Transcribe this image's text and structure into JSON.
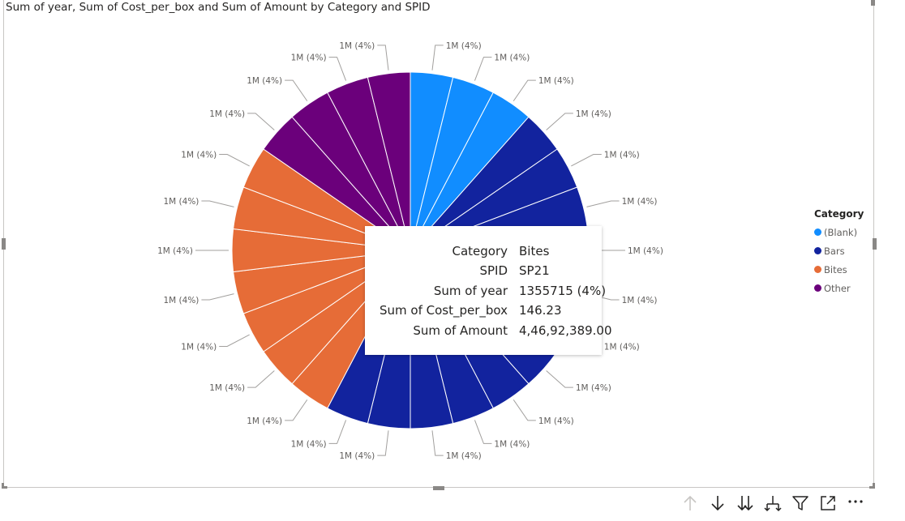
{
  "chart_data": {
    "type": "pie",
    "title": "Sum of year, Sum of Cost_per_box and Sum of Amount by Category and SPID",
    "legend": {
      "title": "Category",
      "placement": "right",
      "items": [
        {
          "name": "(Blank)",
          "color": "#118dff"
        },
        {
          "name": "Bars",
          "color": "#12239e"
        },
        {
          "name": "Bites",
          "color": "#e66c37"
        },
        {
          "name": "Other",
          "color": "#6b007b"
        }
      ]
    },
    "slices": [
      {
        "category": "(Blank)",
        "value": 4,
        "label": "1M (4%)"
      },
      {
        "category": "(Blank)",
        "value": 4,
        "label": "1M (4%)"
      },
      {
        "category": "(Blank)",
        "value": 4,
        "label": "1M (4%)"
      },
      {
        "category": "Bars",
        "value": 4,
        "label": "1M (4%)"
      },
      {
        "category": "Bars",
        "value": 4,
        "label": "1M (4%)"
      },
      {
        "category": "Bars",
        "value": 4,
        "label": "1M (4%)"
      },
      {
        "category": "Bars",
        "value": 4,
        "label": "1M (4%)"
      },
      {
        "category": "Bars",
        "value": 4,
        "label": "1M (4%)"
      },
      {
        "category": "Bars",
        "value": 4,
        "label": "1M (4%)"
      },
      {
        "category": "Bars",
        "value": 4,
        "label": "1M (4%)"
      },
      {
        "category": "Bars",
        "value": 4,
        "label": "1M (4%)"
      },
      {
        "category": "Bars",
        "value": 4,
        "label": "1M (4%)"
      },
      {
        "category": "Bars",
        "value": 4,
        "label": "1M (4%)"
      },
      {
        "category": "Bars",
        "value": 4,
        "label": "1M (4%)"
      },
      {
        "category": "Bars",
        "value": 4,
        "label": "1M (4%)"
      },
      {
        "category": "Bites",
        "value": 4,
        "label": "1M (4%)"
      },
      {
        "category": "Bites",
        "value": 4,
        "label": "1M (4%)"
      },
      {
        "category": "Bites",
        "value": 4,
        "label": "1M (4%)"
      },
      {
        "category": "Bites",
        "value": 4,
        "label": "1M (4%)"
      },
      {
        "category": "Bites",
        "value": 4,
        "label": "1M (4%)"
      },
      {
        "category": "Bites",
        "value": 4,
        "label": "1M (4%)"
      },
      {
        "category": "Bites",
        "value": 4,
        "label": "1M (4%)"
      },
      {
        "category": "Other",
        "value": 4,
        "label": "1M (4%)"
      },
      {
        "category": "Other",
        "value": 4,
        "label": "1M (4%)"
      },
      {
        "category": "Other",
        "value": 4,
        "label": "1M (4%)"
      },
      {
        "category": "Other",
        "value": 4,
        "label": "1M (4%)"
      }
    ]
  },
  "tooltip": {
    "rows": [
      {
        "key": "Category",
        "value": "Bites"
      },
      {
        "key": "SPID",
        "value": "SP21"
      },
      {
        "key": "Sum of year",
        "value": "1355715 (4%)"
      },
      {
        "key": "Sum of Cost_per_box",
        "value": "146.23"
      },
      {
        "key": "Sum of Amount",
        "value": "4,46,92,389.00"
      }
    ]
  },
  "toolbar": {
    "icons": [
      "arrow-up-icon",
      "arrow-down-icon",
      "double-arrow-down-icon",
      "expand-hierarchy-icon",
      "filter-icon",
      "focus-mode-icon",
      "more-options-icon"
    ]
  },
  "colors": {
    "label_text": "#605e5c",
    "leader_line": "#a19f9d",
    "slice_border": "#ffffff"
  }
}
